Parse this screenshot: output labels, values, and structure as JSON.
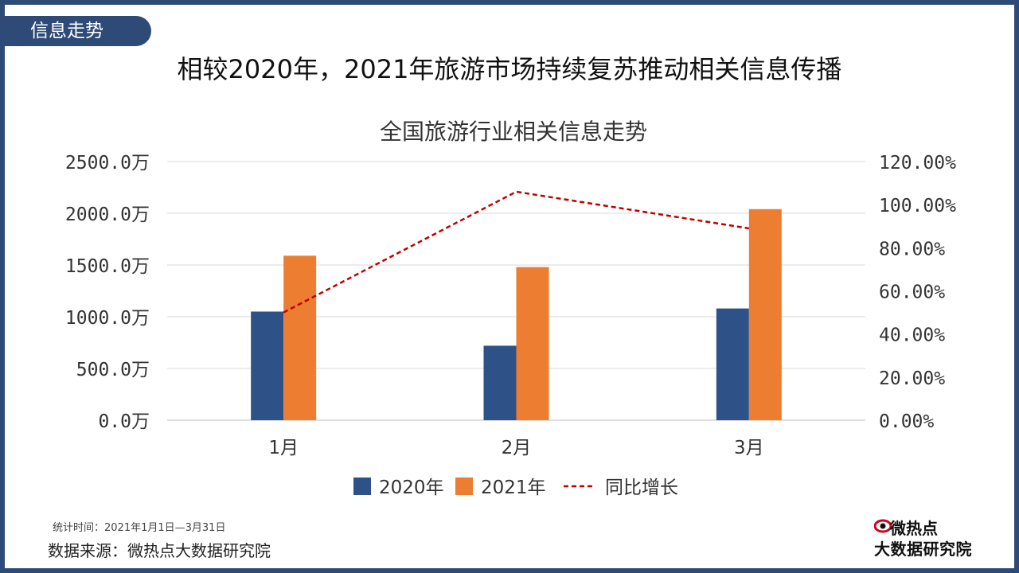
{
  "header": {
    "section_tag": "信息走势",
    "page_title": "相较2020年，2021年旅游市场持续复苏推动相关信息传播"
  },
  "colors": {
    "frame": "#2e4b78",
    "series_2020": "#2e5288",
    "series_2021": "#ed7d31",
    "series_growth": "#c00000"
  },
  "chart_data": {
    "type": "bar",
    "title": "全国旅游行业相关信息走势",
    "categories": [
      "1月",
      "2月",
      "3月"
    ],
    "series": [
      {
        "name": "2020年",
        "type": "bar",
        "axis": "left",
        "values": [
          1050,
          720,
          1080
        ]
      },
      {
        "name": "2021年",
        "type": "bar",
        "axis": "left",
        "values": [
          1590,
          1480,
          2040
        ]
      },
      {
        "name": "同比增长",
        "type": "line",
        "style": "dashed",
        "axis": "right",
        "values": [
          0.5,
          1.06,
          0.89
        ]
      }
    ],
    "y_left": {
      "range": [
        0,
        2500
      ],
      "ticks": [
        "0.0万",
        "500.0万",
        "1000.0万",
        "1500.0万",
        "2000.0万",
        "2500.0万"
      ]
    },
    "y_right": {
      "range": [
        0,
        1.2
      ],
      "ticks": [
        "0.00%",
        "20.00%",
        "40.00%",
        "60.00%",
        "80.00%",
        "100.00%",
        "120.00%"
      ]
    },
    "grid": true,
    "legend": "bottom"
  },
  "footer": {
    "stat_time": "统计时间：2021年1月1日—3月31日",
    "source": "数据来源：微热点大数据研究院",
    "brand_top": "微热点",
    "brand_bottom": "大数据研究院",
    "brand_icon": "eye-logo-icon"
  }
}
